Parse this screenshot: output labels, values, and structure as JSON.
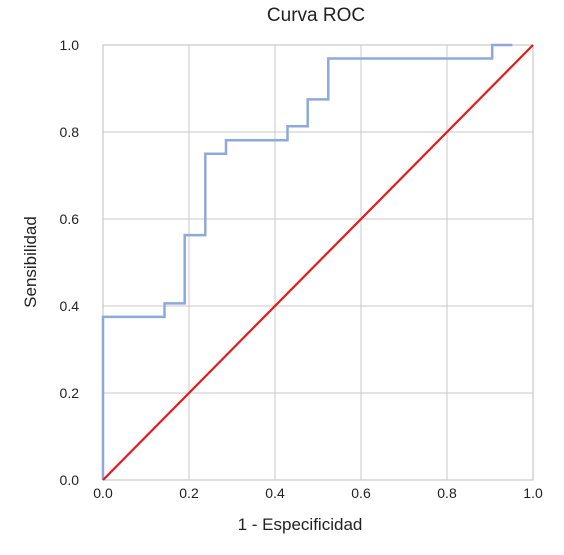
{
  "chart_data": {
    "type": "line",
    "title": "Curva ROC",
    "xlabel": "1 - Especificidad",
    "ylabel": "Sensibilidad",
    "xlim": [
      0,
      1
    ],
    "ylim": [
      0,
      1
    ],
    "xticks": [
      "0.0",
      "0.2",
      "0.4",
      "0.6",
      "0.8",
      "1.0"
    ],
    "yticks": [
      "0.0",
      "0.2",
      "0.4",
      "0.6",
      "0.8",
      "1.0"
    ],
    "grid": true,
    "series": [
      {
        "color": "#8fa8dc",
        "x": [
          0.0,
          0.0,
          0.143,
          0.143,
          0.19,
          0.19,
          0.238,
          0.238,
          0.286,
          0.286,
          0.429,
          0.429,
          0.476,
          0.476,
          0.524,
          0.524,
          0.905,
          0.905,
          0.952
        ],
        "y": [
          0.0,
          0.375,
          0.375,
          0.406,
          0.406,
          0.563,
          0.563,
          0.75,
          0.75,
          0.781,
          0.781,
          0.813,
          0.813,
          0.875,
          0.875,
          0.969,
          0.969,
          1.0,
          1.0
        ]
      },
      {
        "color": "#e41a1c",
        "x": [
          0.0,
          1.0
        ],
        "y": [
          0.0,
          1.0
        ]
      }
    ]
  }
}
